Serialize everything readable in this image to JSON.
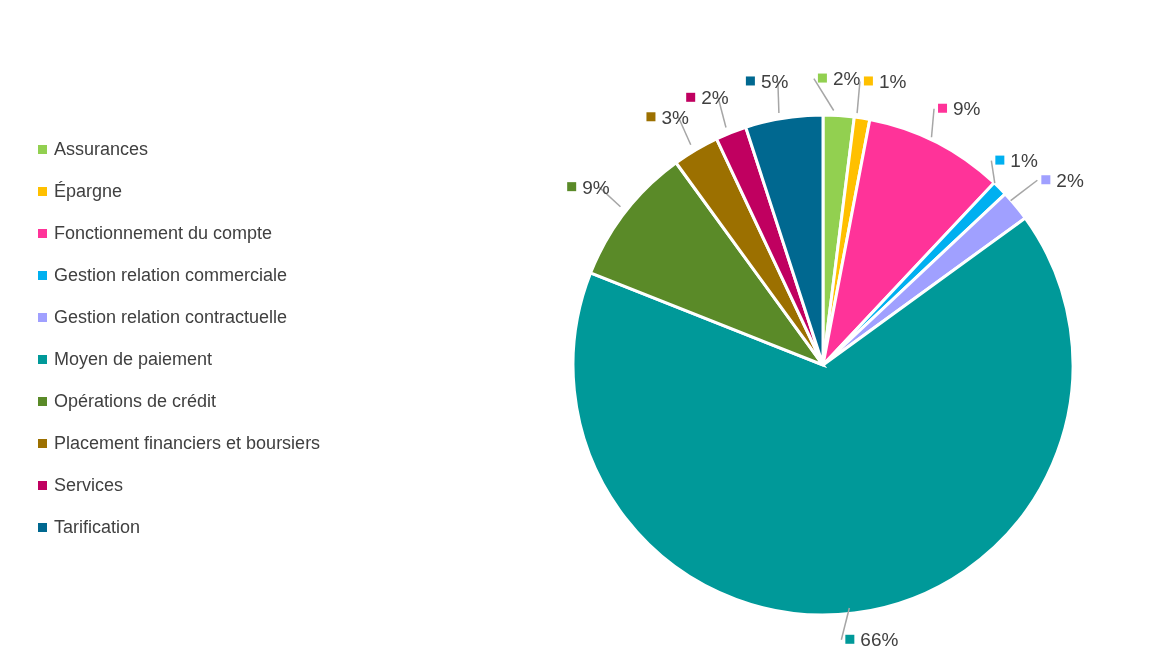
{
  "chart_data": {
    "type": "pie",
    "categories": [
      "Assurances",
      "Épargne",
      "Fonctionnement du compte",
      "Gestion relation commerciale",
      "Gestion relation contractuelle",
      "Moyen de paiement",
      "Opérations de crédit",
      "Placement financiers et boursiers",
      "Services",
      "Tarification"
    ],
    "values": [
      2,
      1,
      9,
      1,
      2,
      66,
      9,
      3,
      2,
      5
    ],
    "colors": [
      "#92d050",
      "#ffc000",
      "#ff3399",
      "#00b0f0",
      "#a0a0ff",
      "#009999",
      "#5a8a28",
      "#9c7000",
      "#c00060",
      "#006890"
    ],
    "value_labels": [
      "2%",
      "1%",
      "9%",
      "1%",
      "2%",
      "66%",
      "9%",
      "3%",
      "2%",
      "5%"
    ],
    "legend": "left"
  }
}
